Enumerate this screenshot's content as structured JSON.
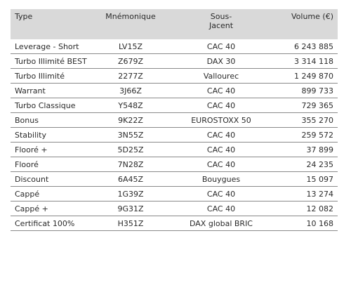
{
  "table": {
    "header": [
      "Type",
      "Mnémonique",
      "Sous-\nJacent",
      "Volume (€)"
    ],
    "rows": [
      [
        "Leverage - Short",
        "LV15Z",
        "CAC 40",
        "6 243 885"
      ],
      [
        "Turbo Illimité BEST",
        "Z679Z",
        "DAX 30",
        "3 314 118"
      ],
      [
        "Turbo Illimité",
        "2277Z",
        "Vallourec",
        "1 249 870"
      ],
      [
        "Warrant",
        "3J66Z",
        "CAC 40",
        "899 733"
      ],
      [
        "Turbo Classique",
        "Y548Z",
        "CAC 40",
        "729 365"
      ],
      [
        "Bonus",
        "9K22Z",
        "EUROSTOXX 50",
        "355 270"
      ],
      [
        "Stability",
        "3N55Z",
        "CAC 40",
        "259 572"
      ],
      [
        "Flooré +",
        "5D25Z",
        "CAC 40",
        "37 899"
      ],
      [
        "Flooré",
        "7N28Z",
        "CAC 40",
        "24 235"
      ],
      [
        "Discount",
        "6A45Z",
        "Bouygues",
        "15 097"
      ],
      [
        "Cappé",
        "1G39Z",
        "CAC 40",
        "13 274"
      ],
      [
        "Cappé +",
        "9G31Z",
        "CAC 40",
        "12 082"
      ],
      [
        "Certificat 100%",
        "H351Z",
        "DAX global BRIC",
        "10 168"
      ]
    ]
  }
}
